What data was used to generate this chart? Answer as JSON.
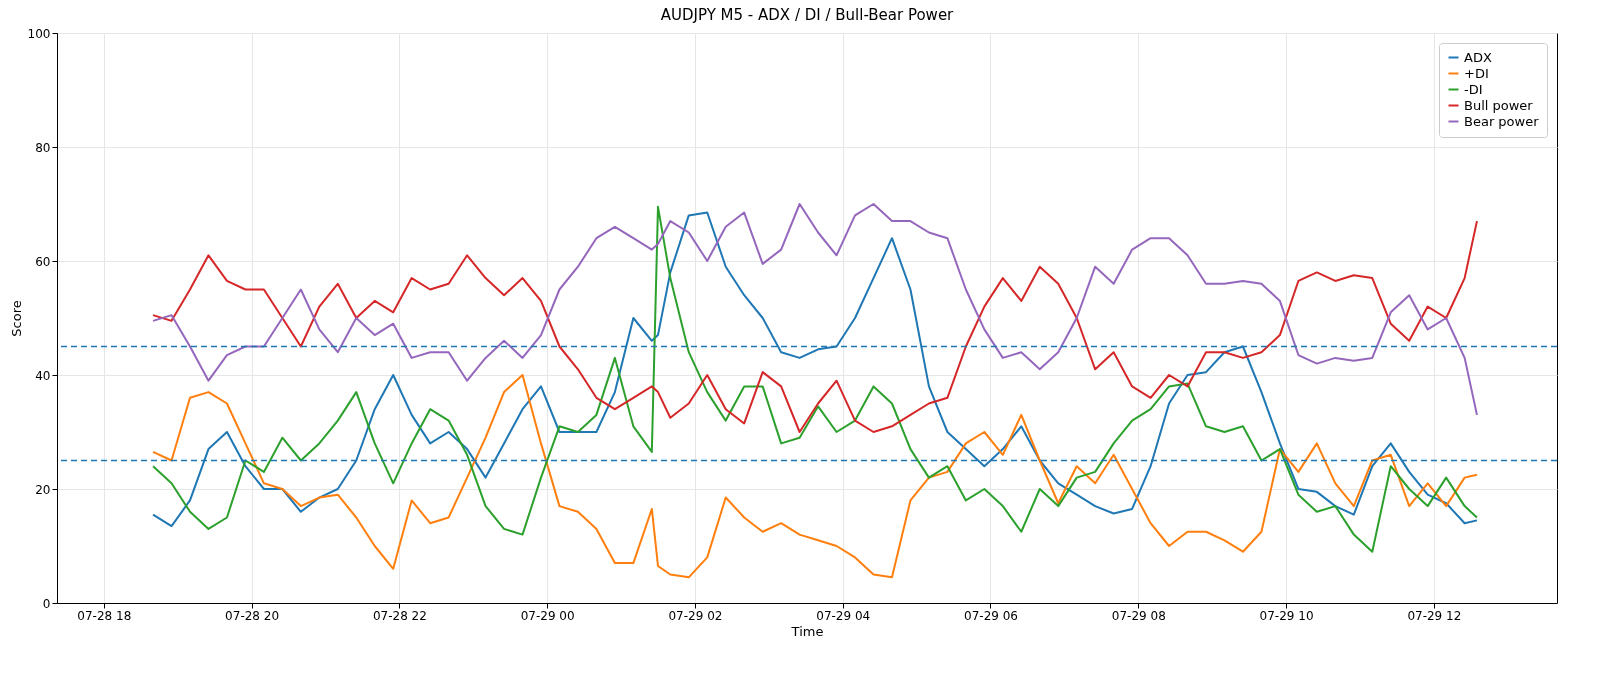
{
  "chart_data": {
    "type": "line",
    "title": "AUDJPY M5 - ADX / DI / Bull-Bear Power",
    "xlabel": "Time",
    "ylabel": "Score",
    "x": [
      "--07-28T18:40",
      "--07-28T18:55",
      "--07-28T19:10",
      "--07-28T19:25",
      "--07-28T19:40",
      "--07-28T19:55",
      "--07-28T20:10",
      "--07-28T20:25",
      "--07-28T20:40",
      "--07-28T20:55",
      "--07-28T21:10",
      "--07-28T21:25",
      "--07-28T21:40",
      "--07-28T21:55",
      "--07-28T22:10",
      "--07-28T22:25",
      "--07-28T22:40",
      "--07-28T22:55",
      "--07-28T23:10",
      "--07-28T23:25",
      "--07-28T23:40",
      "--07-28T23:55",
      "--07-29T00:10",
      "--07-29T00:25",
      "--07-29T00:40",
      "--07-29T00:55",
      "--07-29T01:10",
      "--07-29T01:25",
      "--07-29T01:30",
      "--07-29T01:40",
      "--07-29T01:55",
      "--07-29T02:10",
      "--07-29T02:25",
      "--07-29T02:40",
      "--07-29T02:55",
      "--07-29T03:10",
      "--07-29T03:25",
      "--07-29T03:40",
      "--07-29T03:55",
      "--07-29T04:10",
      "--07-29T04:25",
      "--07-29T04:40",
      "--07-29T04:55",
      "--07-29T05:10",
      "--07-29T05:25",
      "--07-29T05:40",
      "--07-29T05:55",
      "--07-29T06:10",
      "--07-29T06:25",
      "--07-29T06:40",
      "--07-29T06:55",
      "--07-29T07:10",
      "--07-29T07:25",
      "--07-29T07:40",
      "--07-29T07:55",
      "--07-29T08:10",
      "--07-29T08:25",
      "--07-29T08:40",
      "--07-29T08:55",
      "--07-29T09:10",
      "--07-29T09:25",
      "--07-29T09:40",
      "--07-29T09:55",
      "--07-29T10:10",
      "--07-29T10:25",
      "--07-29T10:40",
      "--07-29T10:55",
      "--07-29T11:10",
      "--07-29T11:25",
      "--07-29T11:40",
      "--07-29T11:55",
      "--07-29T12:10",
      "--07-29T12:25",
      "--07-29T12:35"
    ],
    "series": [
      {
        "name": "ADX",
        "color": "#1f77b4",
        "values": [
          15.5,
          13.5,
          18,
          27,
          30,
          24,
          20,
          20,
          16,
          18.5,
          20,
          25,
          34,
          40,
          33,
          28,
          30,
          27,
          22,
          28,
          34,
          38,
          30,
          30,
          30,
          37,
          50,
          46,
          47,
          58,
          68,
          68.5,
          59,
          54,
          50,
          44,
          43,
          44.5,
          45,
          50,
          57,
          64,
          55,
          38,
          30,
          27,
          24,
          27,
          31,
          25,
          21,
          19,
          17,
          15.7,
          16.5,
          24,
          35,
          40,
          40.5,
          44,
          45,
          37,
          28,
          20,
          19.5,
          17,
          15.5,
          24,
          28,
          23,
          19,
          17.5,
          14,
          14.5
        ]
      },
      {
        "name": "+DI",
        "color": "#ff7f0e",
        "values": [
          26.5,
          25,
          36,
          37,
          35,
          28,
          21,
          20,
          17,
          18.5,
          19,
          15,
          10,
          6,
          18,
          14,
          15,
          22,
          29,
          37,
          40,
          28,
          17,
          16,
          13,
          7,
          7,
          16.5,
          6.5,
          5,
          4.5,
          8,
          18.5,
          15,
          12.5,
          14,
          12,
          11,
          10,
          8,
          5,
          4.5,
          18,
          22,
          23,
          28,
          30,
          26,
          33,
          25,
          17.5,
          24,
          21,
          26,
          20,
          14,
          10,
          12.5,
          12.5,
          11,
          9,
          12.5,
          27,
          23,
          28,
          21,
          17,
          25,
          26,
          17,
          21,
          17,
          22,
          22.5
        ]
      },
      {
        "name": "-DI",
        "color": "#2ca02c",
        "values": [
          24,
          21,
          16,
          13,
          15,
          25,
          23,
          29,
          25,
          28,
          32,
          37,
          28,
          21,
          28,
          34,
          32,
          26,
          17,
          13,
          12,
          22,
          31,
          30,
          33,
          43,
          31,
          26.5,
          69.5,
          57,
          44,
          37,
          32,
          38,
          38,
          28,
          29,
          34.5,
          30,
          32,
          38,
          35,
          27,
          22,
          24,
          18,
          20,
          17,
          12.5,
          20,
          17,
          22,
          23,
          28,
          32,
          34,
          38,
          38.5,
          31,
          30,
          31,
          25,
          27,
          19,
          16,
          17,
          12,
          9,
          24,
          20,
          17,
          22,
          17,
          15
        ]
      },
      {
        "name": "Bull power",
        "color": "#d62728",
        "values": [
          50.5,
          49.5,
          55,
          61,
          56.5,
          55,
          55,
          50,
          45,
          52,
          56,
          50,
          53,
          51,
          57,
          55,
          56,
          61,
          57,
          54,
          57,
          53,
          45,
          41,
          36,
          34,
          36,
          38,
          37,
          32.5,
          35,
          40,
          34,
          31.5,
          40.5,
          38,
          30,
          35,
          39,
          32,
          30,
          31,
          33,
          35,
          36,
          45,
          52,
          57,
          53,
          59,
          56,
          50,
          41,
          44,
          38,
          36,
          40,
          38,
          44,
          44,
          43,
          44,
          47,
          56.5,
          58,
          56.5,
          57.5,
          57,
          49,
          46,
          52,
          50,
          57,
          67
        ]
      },
      {
        "name": "Bear power",
        "color": "#9467bd",
        "values": [
          49.5,
          50.5,
          45,
          39,
          43.5,
          45,
          45,
          50,
          55,
          48,
          44,
          50,
          47,
          49,
          43,
          44,
          44,
          39,
          43,
          46,
          43,
          47,
          55,
          59,
          64,
          66,
          64,
          62,
          63,
          67,
          65,
          60,
          66,
          68.5,
          59.5,
          62,
          70,
          65,
          61,
          68,
          70,
          67,
          67,
          65,
          64,
          55,
          48,
          43,
          44,
          41,
          44,
          50,
          59,
          56,
          62,
          64,
          64,
          61,
          56,
          56,
          56.5,
          56,
          53,
          43.5,
          42,
          43,
          42.5,
          43,
          51,
          54,
          48,
          50,
          43,
          33
        ]
      }
    ],
    "ref_lines": [
      {
        "axis": "y",
        "value": 45,
        "color": "#1f77b4",
        "line_style": "dashed"
      },
      {
        "axis": "y",
        "value": 25,
        "color": "#1f77b4",
        "line_style": "dashed"
      }
    ],
    "xlim": [
      "--07-28T17:22",
      "--07-29T13:40"
    ],
    "xticks": [
      {
        "value": "--07-28T18:00",
        "label": "07-28 18"
      },
      {
        "value": "--07-28T20:00",
        "label": "07-28 20"
      },
      {
        "value": "--07-28T22:00",
        "label": "07-28 22"
      },
      {
        "value": "--07-29T00:00",
        "label": "07-29 00"
      },
      {
        "value": "--07-29T02:00",
        "label": "07-29 02"
      },
      {
        "value": "--07-29T04:00",
        "label": "07-29 04"
      },
      {
        "value": "--07-29T06:00",
        "label": "07-29 06"
      },
      {
        "value": "--07-29T08:00",
        "label": "07-29 08"
      },
      {
        "value": "--07-29T10:00",
        "label": "07-29 10"
      },
      {
        "value": "--07-29T12:00",
        "label": "07-29 12"
      }
    ],
    "ylim": [
      0,
      100
    ],
    "yticks": [
      0,
      20,
      40,
      60,
      80,
      100
    ],
    "grid": true,
    "legend": "top right",
    "line_style": "solid"
  }
}
